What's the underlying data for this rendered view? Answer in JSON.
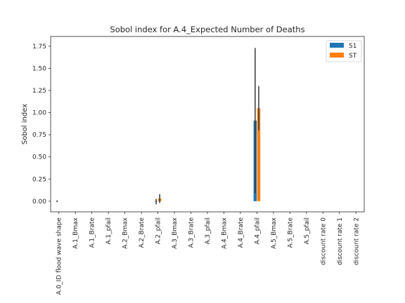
{
  "chart_data": {
    "type": "bar",
    "title": "Sobol index for A.4_Expected Number of Deaths",
    "xlabel": "",
    "ylabel": "Sobol index",
    "ylim": [
      -0.12,
      1.86
    ],
    "yticks": [
      "0.00",
      "0.25",
      "0.50",
      "0.75",
      "1.00",
      "1.25",
      "1.50",
      "1.75"
    ],
    "ytick_values": [
      0,
      0.25,
      0.5,
      0.75,
      1.0,
      1.25,
      1.5,
      1.75
    ],
    "grid": false,
    "legend_position": "top-right",
    "categories": [
      "A.0_ID flood wave shape",
      "A.1_Bmax",
      "A.1_Brate",
      "A.1_pfail",
      "A.2_Bmax",
      "A.2_Brate",
      "A.2_pfail",
      "A.3_Bmax",
      "A.3_Brate",
      "A.3_pfail",
      "A.4_Bmax",
      "A.4_Brate",
      "A.4_pfail",
      "A.5_Bmax",
      "A.5_Brate",
      "A.5_pfail",
      "discount rate 0",
      "discount rate 1",
      "discount rate 2"
    ],
    "series": [
      {
        "name": "S1",
        "color": "#1f77b4",
        "values": [
          0,
          0,
          0,
          0,
          0,
          0,
          -0.005,
          0,
          0,
          0,
          0,
          0,
          0.91,
          0,
          0,
          0,
          0,
          0,
          0
        ],
        "errors": [
          0.01,
          0,
          0,
          0,
          0,
          0,
          0.03,
          0,
          0,
          0,
          0,
          0,
          0.82,
          0,
          0,
          0,
          0,
          0,
          0
        ]
      },
      {
        "name": "ST",
        "color": "#ff7f0e",
        "values": [
          0,
          0,
          0,
          0,
          0,
          0,
          0.03,
          0,
          0,
          0,
          0,
          0,
          1.05,
          0,
          0,
          0,
          0,
          0,
          0
        ],
        "errors": [
          0,
          0,
          0,
          0,
          0,
          0,
          0.05,
          0,
          0,
          0,
          0,
          0,
          0.25,
          0,
          0,
          0,
          0,
          0,
          0
        ]
      }
    ]
  }
}
